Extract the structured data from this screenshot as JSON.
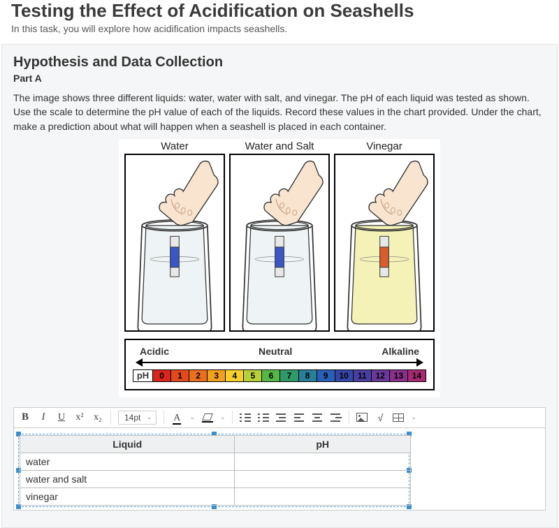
{
  "page": {
    "title": "Testing the Effect of Acidification on Seashells",
    "subtitle": "In this task, you will explore how acidification impacts seashells."
  },
  "section": {
    "title": "Hypothesis and Data Collection",
    "part_label": "Part A",
    "prompt": "The image shows three different liquids: water, water with salt, and vinegar. The pH of each liquid was tested as shown. Use the scale to determine the pH value of each of the liquids. Record these values in the chart provided. Under the chart, make a prediction about what will happen when a seashell is placed in each container."
  },
  "figure": {
    "beakers": [
      {
        "label": "Water",
        "liquid_fill": "#eef4f5",
        "strip_color": "#3b57c7"
      },
      {
        "label": "Water and Salt",
        "liquid_fill": "#eef4f5",
        "strip_color": "#3b57c7"
      },
      {
        "label": "Vinegar",
        "liquid_fill": "#f5f2b8",
        "strip_color": "#d95b2e"
      }
    ],
    "ph_labels": {
      "left": "Acidic",
      "mid": "Neutral",
      "right": "Alkaline"
    },
    "ph_prefix": "pH",
    "ph_scale": [
      {
        "n": "0",
        "c": "#d8261e"
      },
      {
        "n": "1",
        "c": "#e24a1e"
      },
      {
        "n": "2",
        "c": "#ec6f1f"
      },
      {
        "n": "3",
        "c": "#f4a01f"
      },
      {
        "n": "4",
        "c": "#f6cf2d"
      },
      {
        "n": "5",
        "c": "#b7cf3a"
      },
      {
        "n": "6",
        "c": "#56b748"
      },
      {
        "n": "7",
        "c": "#2e9a67"
      },
      {
        "n": "8",
        "c": "#2a7e9a"
      },
      {
        "n": "9",
        "c": "#2a5fb8"
      },
      {
        "n": "10",
        "c": "#3546a8"
      },
      {
        "n": "11",
        "c": "#4a3fa0"
      },
      {
        "n": "12",
        "c": "#6a3a9a"
      },
      {
        "n": "13",
        "c": "#8a2f8a"
      },
      {
        "n": "14",
        "c": "#a82a74"
      }
    ]
  },
  "toolbar": {
    "bold": "B",
    "italic": "I",
    "underline": "U",
    "sup": "x²",
    "sub": "x₂",
    "font_size": "14pt",
    "color_a": "A"
  },
  "table": {
    "headers": [
      "Liquid",
      "pH"
    ],
    "rows": [
      {
        "liquid": "water",
        "ph": ""
      },
      {
        "liquid": "water and salt",
        "ph": ""
      },
      {
        "liquid": "vinegar",
        "ph": ""
      }
    ]
  }
}
